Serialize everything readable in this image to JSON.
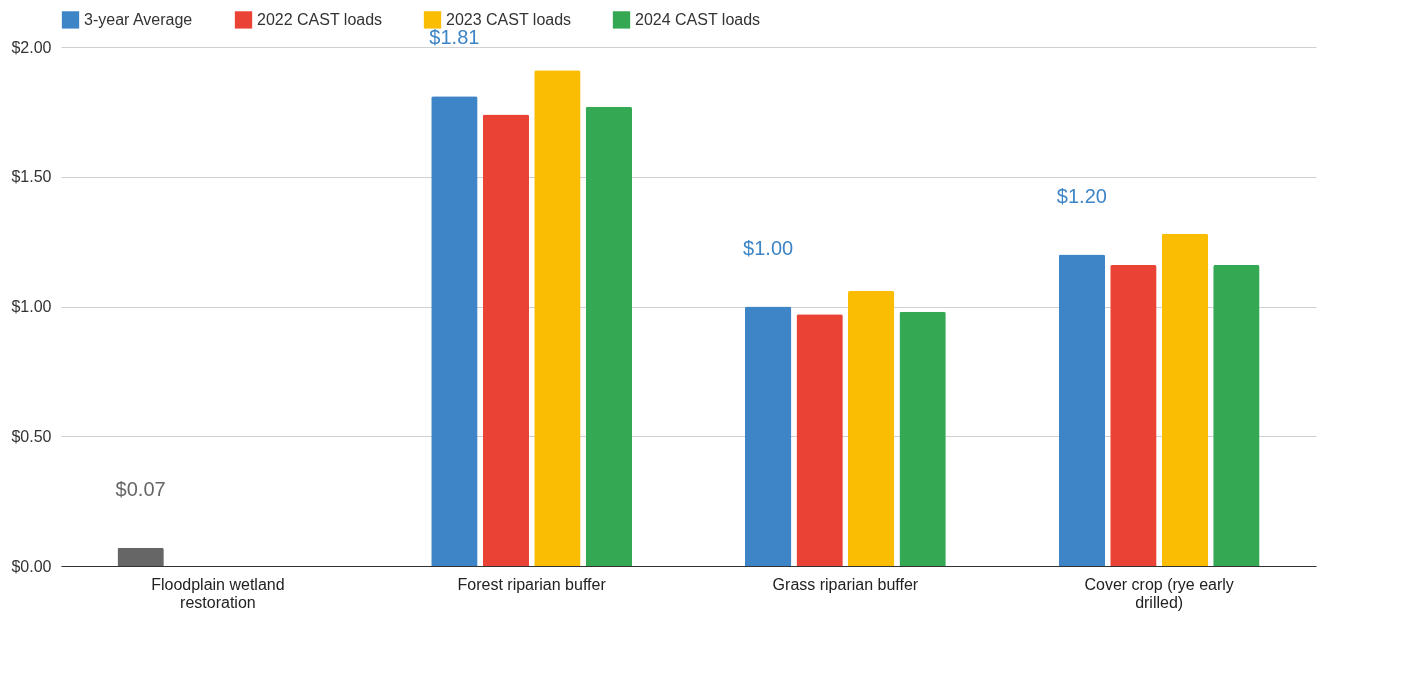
{
  "chart_data": {
    "type": "bar",
    "categories": [
      "Floodplain wetland restoration",
      "Forest riparian buffer",
      "Grass riparian buffer",
      "Cover crop (rye early drilled)"
    ],
    "series": [
      {
        "name": "3-year Average",
        "color": "#3d85c6",
        "colors": [
          "#666666",
          "#3d85c6",
          "#3d85c6",
          "#3d85c6"
        ],
        "values": [
          0.07,
          1.81,
          1.0,
          1.2
        ],
        "value_labels": [
          "$0.07",
          "$1.81",
          "$1.00",
          "$1.20"
        ]
      },
      {
        "name": "2022 CAST loads",
        "color": "#ea4335",
        "values": [
          null,
          1.74,
          0.97,
          1.16
        ]
      },
      {
        "name": "2023 CAST loads",
        "color": "#fbbc04",
        "values": [
          null,
          1.91,
          1.06,
          1.28
        ]
      },
      {
        "name": "2024 CAST loads",
        "color": "#34a853",
        "values": [
          null,
          1.77,
          0.98,
          1.16
        ]
      }
    ],
    "ylim": [
      0,
      2
    ],
    "yticks": [
      {
        "value": 0,
        "label": "$0.00"
      },
      {
        "value": 0.5,
        "label": "$0.50"
      },
      {
        "value": 1,
        "label": "$1.00"
      },
      {
        "value": 1.5,
        "label": "$1.50"
      },
      {
        "value": 2,
        "label": "$2.00"
      }
    ],
    "grid": "y",
    "legend": "top"
  }
}
